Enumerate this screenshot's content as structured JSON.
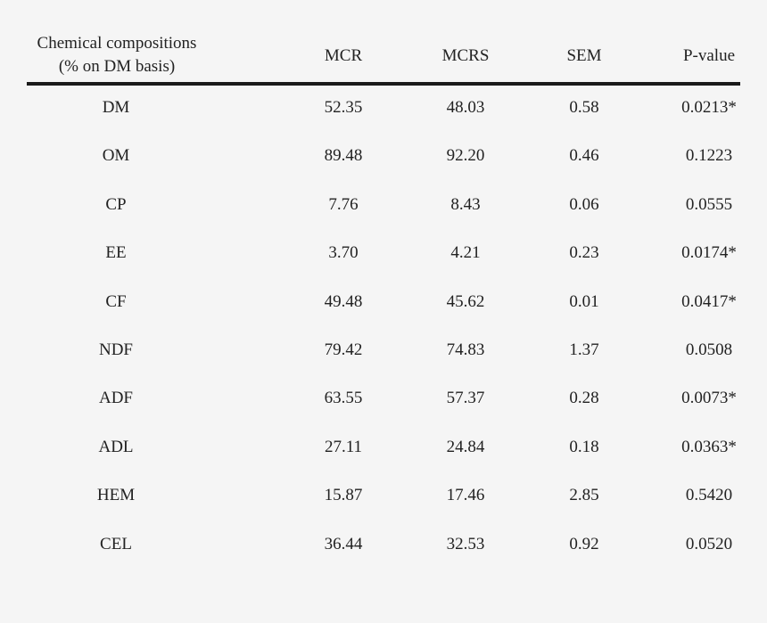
{
  "table": {
    "headers": {
      "composition_line1": "Chemical compositions",
      "composition_line2": "(% on DM basis)",
      "mcr": "MCR",
      "mcrs": "MCRS",
      "sem": "SEM",
      "pvalue": "P-value"
    },
    "rows": [
      [
        "DM",
        "52.35",
        "48.03",
        "0.58",
        "0.0213*"
      ],
      [
        "OM",
        "89.48",
        "92.20",
        "0.46",
        "0.1223"
      ],
      [
        "CP",
        "7.76",
        "8.43",
        "0.06",
        "0.0555"
      ],
      [
        "EE",
        "3.70",
        "4.21",
        "0.23",
        "0.0174*"
      ],
      [
        "CF",
        "49.48",
        "45.62",
        "0.01",
        "0.0417*"
      ],
      [
        "NDF",
        "79.42",
        "74.83",
        "1.37",
        "0.0508"
      ],
      [
        "ADF",
        "63.55",
        "57.37",
        "0.28",
        "0.0073*"
      ],
      [
        "ADL",
        "27.11",
        "24.84",
        "0.18",
        "0.0363*"
      ],
      [
        "HEM",
        "15.87",
        "17.46",
        "2.85",
        "0.5420"
      ],
      [
        "CEL",
        "36.44",
        "32.53",
        "0.92",
        "0.0520"
      ]
    ]
  }
}
